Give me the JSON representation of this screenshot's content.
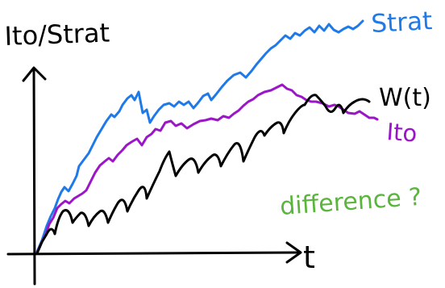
{
  "labels": {
    "y_axis": "Ito/Strat",
    "x_axis": "t",
    "strat": "Strat",
    "wiener": "W(t)",
    "ito": "Ito",
    "question": "difference ?"
  },
  "colors": {
    "axis": "#000000",
    "strat": "#1f7ae8",
    "ito": "#9b16c7",
    "wiener": "#000000",
    "question": "#59b53c"
  }
}
